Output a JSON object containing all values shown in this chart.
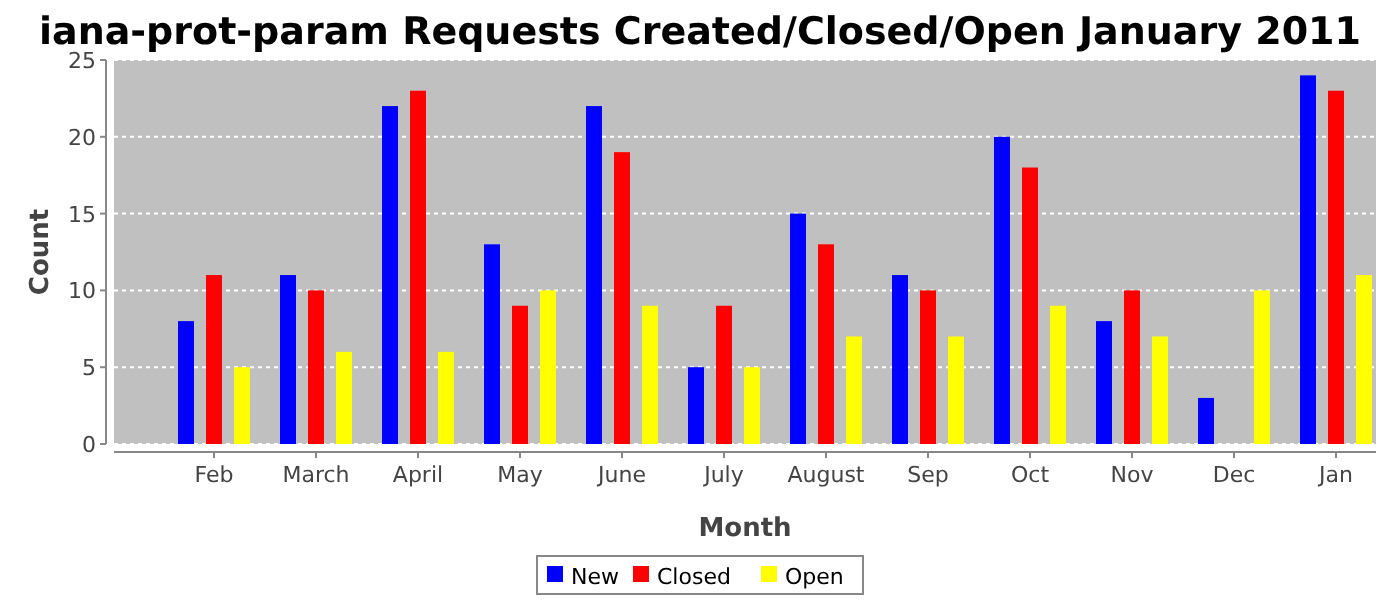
{
  "chart_data": {
    "type": "bar",
    "title": "iana-prot-param Requests Created/Closed/Open January 2011",
    "xlabel": "Month",
    "ylabel": "Count",
    "categories": [
      "Feb",
      "March",
      "April",
      "May",
      "June",
      "July",
      "August",
      "Sep",
      "Oct",
      "Nov",
      "Dec",
      "Jan"
    ],
    "series": [
      {
        "name": "New",
        "color": "#0000ff",
        "values": [
          8,
          11,
          22,
          13,
          22,
          5,
          15,
          11,
          20,
          8,
          3,
          24
        ]
      },
      {
        "name": "Closed",
        "color": "#ff0000",
        "values": [
          11,
          10,
          23,
          9,
          19,
          9,
          13,
          10,
          18,
          10,
          0,
          23
        ]
      },
      {
        "name": "Open",
        "color": "#ffff00",
        "values": [
          5,
          6,
          6,
          10,
          9,
          5,
          7,
          7,
          9,
          7,
          10,
          11
        ]
      }
    ],
    "ylim": [
      0,
      25
    ],
    "yticks": [
      0,
      5,
      10,
      15,
      20,
      25
    ],
    "grid": "y",
    "legend": "bottom"
  }
}
